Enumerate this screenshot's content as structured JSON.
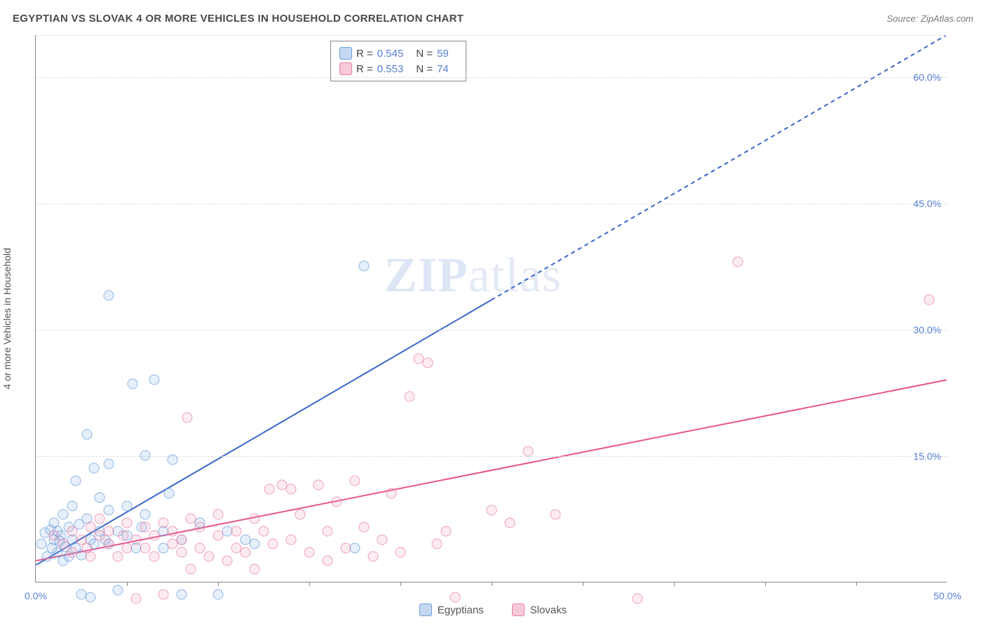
{
  "title": "EGYPTIAN VS SLOVAK 4 OR MORE VEHICLES IN HOUSEHOLD CORRELATION CHART",
  "source": "Source: ZipAtlas.com",
  "ylabel": "4 or more Vehicles in Household",
  "watermark_a": "ZIP",
  "watermark_b": "atlas",
  "chart": {
    "type": "scatter",
    "x_range": [
      0,
      50
    ],
    "y_range": [
      0,
      65
    ],
    "x_ticks": [
      0,
      50
    ],
    "x_tick_labels": [
      "0.0%",
      "50.0%"
    ],
    "x_minor_ticks": [
      5,
      10,
      15,
      20,
      25,
      30,
      35,
      40,
      45
    ],
    "y_ticks": [
      15,
      30,
      45,
      60
    ],
    "y_tick_labels": [
      "15.0%",
      "30.0%",
      "45.0%",
      "60.0%"
    ],
    "grid_color": "#dddddd",
    "background": "#ffffff",
    "axis_color": "#888888",
    "tick_label_color": "#577fd6",
    "series": [
      {
        "name": "Egyptians",
        "marker_fill": "rgba(137,178,230,0.28)",
        "marker_stroke": "#6a9edc",
        "marker_size": 15,
        "line_color": "#3b67c9",
        "line_width": 2,
        "line_dash_after_x": 25,
        "reg_start": [
          0,
          2.0
        ],
        "reg_end": [
          50,
          65.0
        ],
        "R": "0.545",
        "N": "59",
        "points": [
          [
            0.3,
            4.5
          ],
          [
            0.5,
            5.8
          ],
          [
            0.6,
            3.0
          ],
          [
            0.8,
            6.2
          ],
          [
            0.9,
            4.0
          ],
          [
            1.0,
            5.0
          ],
          [
            1.0,
            7.0
          ],
          [
            1.2,
            3.5
          ],
          [
            1.2,
            6.0
          ],
          [
            1.3,
            4.8
          ],
          [
            1.4,
            5.5
          ],
          [
            1.5,
            2.5
          ],
          [
            1.5,
            8.0
          ],
          [
            1.6,
            4.2
          ],
          [
            1.8,
            6.5
          ],
          [
            1.8,
            3.0
          ],
          [
            2.0,
            5.0
          ],
          [
            2.0,
            9.0
          ],
          [
            2.2,
            4.0
          ],
          [
            2.2,
            12.0
          ],
          [
            2.4,
            6.8
          ],
          [
            2.5,
            3.2
          ],
          [
            2.5,
            -1.5
          ],
          [
            2.8,
            7.5
          ],
          [
            2.8,
            17.5
          ],
          [
            3.0,
            5.0
          ],
          [
            3.0,
            -1.8
          ],
          [
            3.2,
            4.5
          ],
          [
            3.2,
            13.5
          ],
          [
            3.5,
            6.0
          ],
          [
            3.5,
            10.0
          ],
          [
            3.8,
            5.0
          ],
          [
            4.0,
            4.5
          ],
          [
            4.0,
            8.5
          ],
          [
            4.0,
            14.0
          ],
          [
            4.0,
            34.0
          ],
          [
            4.5,
            6.0
          ],
          [
            4.5,
            -1.0
          ],
          [
            5.0,
            5.5
          ],
          [
            5.0,
            9.0
          ],
          [
            5.3,
            23.5
          ],
          [
            5.5,
            4.0
          ],
          [
            5.8,
            6.5
          ],
          [
            6.0,
            8.0
          ],
          [
            6.0,
            15.0
          ],
          [
            6.5,
            24.0
          ],
          [
            7.0,
            6.0
          ],
          [
            7.0,
            4.0
          ],
          [
            7.3,
            10.5
          ],
          [
            7.5,
            14.5
          ],
          [
            8.0,
            5.0
          ],
          [
            8.0,
            -1.5
          ],
          [
            9.0,
            7.0
          ],
          [
            10.0,
            -1.5
          ],
          [
            10.5,
            6.0
          ],
          [
            11.5,
            5.0
          ],
          [
            12.0,
            4.5
          ],
          [
            17.5,
            4.0
          ],
          [
            18.0,
            37.5
          ]
        ]
      },
      {
        "name": "Slovaks",
        "marker_fill": "rgba(237,148,177,0.24)",
        "marker_stroke": "#e97fa7",
        "marker_size": 15,
        "line_color": "#e7558b",
        "line_width": 2,
        "reg_start": [
          0,
          2.5
        ],
        "reg_end": [
          50,
          24.0
        ],
        "R": "0.553",
        "N": "74",
        "points": [
          [
            1.0,
            5.5
          ],
          [
            1.5,
            4.5
          ],
          [
            2.0,
            6.0
          ],
          [
            2.0,
            3.5
          ],
          [
            2.5,
            5.0
          ],
          [
            2.8,
            4.0
          ],
          [
            3.0,
            6.5
          ],
          [
            3.0,
            3.0
          ],
          [
            3.5,
            5.5
          ],
          [
            3.5,
            7.5
          ],
          [
            4.0,
            4.5
          ],
          [
            4.0,
            6.0
          ],
          [
            4.5,
            3.0
          ],
          [
            4.8,
            5.5
          ],
          [
            5.0,
            4.0
          ],
          [
            5.0,
            7.0
          ],
          [
            5.5,
            5.0
          ],
          [
            5.5,
            -2.0
          ],
          [
            6.0,
            6.5
          ],
          [
            6.0,
            4.0
          ],
          [
            6.5,
            5.5
          ],
          [
            6.5,
            3.0
          ],
          [
            7.0,
            7.0
          ],
          [
            7.0,
            -1.5
          ],
          [
            7.5,
            6.0
          ],
          [
            7.5,
            4.5
          ],
          [
            8.0,
            5.0
          ],
          [
            8.0,
            3.5
          ],
          [
            8.3,
            19.5
          ],
          [
            8.5,
            7.5
          ],
          [
            8.5,
            1.5
          ],
          [
            9.0,
            4.0
          ],
          [
            9.0,
            6.5
          ],
          [
            9.5,
            3.0
          ],
          [
            10.0,
            5.5
          ],
          [
            10.0,
            8.0
          ],
          [
            10.5,
            2.5
          ],
          [
            11.0,
            6.0
          ],
          [
            11.0,
            4.0
          ],
          [
            11.5,
            3.5
          ],
          [
            12.0,
            7.5
          ],
          [
            12.0,
            1.5
          ],
          [
            12.5,
            6.0
          ],
          [
            12.8,
            11.0
          ],
          [
            13.0,
            4.5
          ],
          [
            13.5,
            11.5
          ],
          [
            14.0,
            5.0
          ],
          [
            14.0,
            11.0
          ],
          [
            14.5,
            8.0
          ],
          [
            15.0,
            3.5
          ],
          [
            15.5,
            11.5
          ],
          [
            16.0,
            6.0
          ],
          [
            16.0,
            2.5
          ],
          [
            16.5,
            9.5
          ],
          [
            17.0,
            4.0
          ],
          [
            17.5,
            12.0
          ],
          [
            18.0,
            6.5
          ],
          [
            18.5,
            3.0
          ],
          [
            19.0,
            5.0
          ],
          [
            19.5,
            10.5
          ],
          [
            20.0,
            3.5
          ],
          [
            20.5,
            22.0
          ],
          [
            21.0,
            26.5
          ],
          [
            21.5,
            26.0
          ],
          [
            22.0,
            4.5
          ],
          [
            22.5,
            6.0
          ],
          [
            23.0,
            -1.8
          ],
          [
            25.0,
            8.5
          ],
          [
            26.0,
            7.0
          ],
          [
            27.0,
            15.5
          ],
          [
            28.5,
            8.0
          ],
          [
            33.0,
            -2.0
          ],
          [
            38.5,
            38.0
          ],
          [
            49.0,
            33.5
          ]
        ]
      }
    ]
  },
  "legend": {
    "rows": [
      {
        "series": 0,
        "R_label": "R =",
        "R": "0.545",
        "N_label": "N =",
        "N": "59"
      },
      {
        "series": 1,
        "R_label": "R =",
        "R": "0.553",
        "N_label": "N =",
        "N": "74"
      }
    ]
  },
  "bottom_legend": [
    {
      "series": 0,
      "label": "Egyptians"
    },
    {
      "series": 1,
      "label": "Slovaks"
    }
  ]
}
